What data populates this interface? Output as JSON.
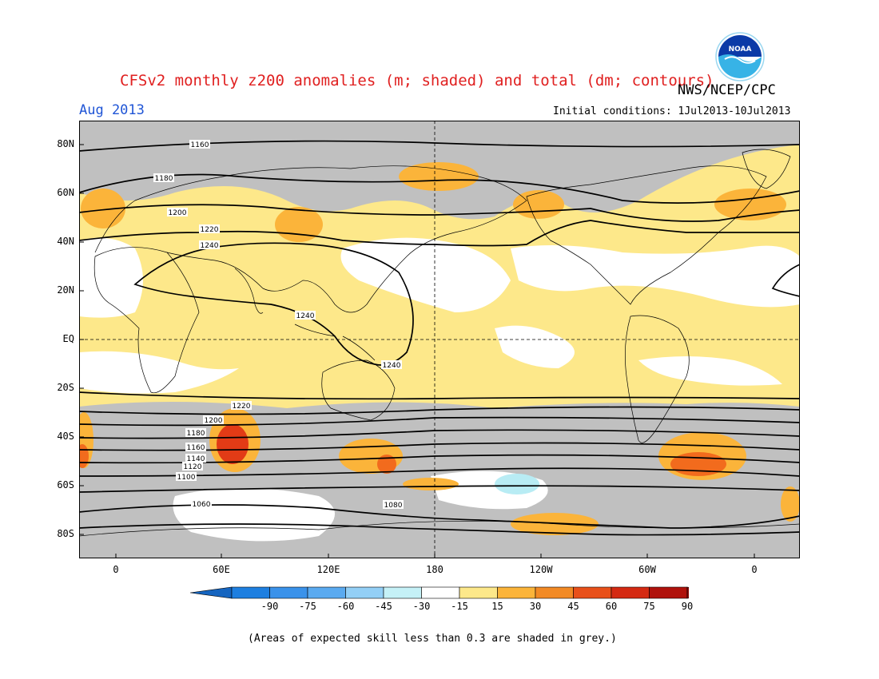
{
  "header": {
    "title": "CFSv2 monthly z200 anomalies (m; shaded) and total (dm; contours)",
    "agency": "NWS/NCEP/CPC",
    "month": "Aug 2013",
    "initial_conditions": "Initial conditions: 1Jul2013-10Jul2013",
    "logo_text": "NOAA"
  },
  "map": {
    "lat_labels": [
      "80N",
      "60N",
      "40N",
      "20N",
      "EQ",
      "20S",
      "40S",
      "60S",
      "80S"
    ],
    "lon_labels": [
      "0",
      "60E",
      "120E",
      "180",
      "120W",
      "60W",
      "0"
    ],
    "contour_labels": [
      "1160",
      "1180",
      "1200",
      "1220",
      "1240",
      "1240",
      "1240",
      "1220",
      "1200",
      "1180",
      "1160",
      "1140",
      "1120",
      "1100",
      "1080",
      "1060"
    ],
    "colors": {
      "grey": "#c0c0c0",
      "yellow": "#fde88a",
      "orange": "#fbb43a",
      "dark_orange": "#f26b1d",
      "red": "#e23b16",
      "light_blue": "#b8ecf4"
    }
  },
  "colorbar": {
    "labels": [
      "-90",
      "-75",
      "-60",
      "-45",
      "-30",
      "-15",
      "15",
      "30",
      "45",
      "60",
      "75",
      "90"
    ],
    "colors": [
      "#1565c0",
      "#1e7fe0",
      "#3a92ea",
      "#5aaaf0",
      "#93cff6",
      "#c5f1f7",
      "#ffffff",
      "#fde88a",
      "#fbb43a",
      "#f28a25",
      "#e8501a",
      "#d42a12",
      "#b0120c",
      "#8a0a08"
    ]
  },
  "footer": {
    "note": "(Areas of expected skill less than 0.3 are shaded in grey.)"
  }
}
